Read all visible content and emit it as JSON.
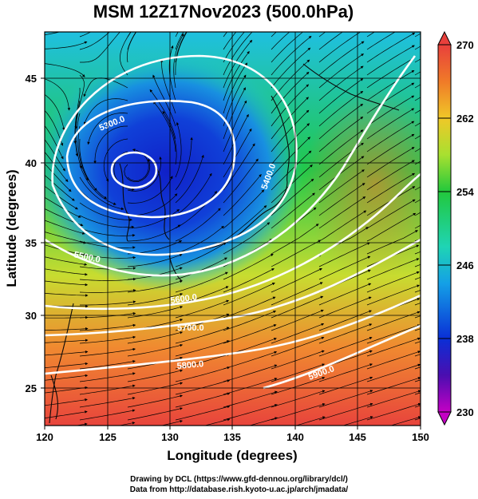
{
  "title": "MSM 12Z17Nov2023 (500.0hPa)",
  "axes": {
    "xlabel": "Longitude (degrees)",
    "ylabel": "Latitude  (degrees)",
    "x_ticks": [
      "120",
      "125",
      "130",
      "135",
      "140",
      "145",
      "150"
    ],
    "y_ticks": [
      "25",
      "30",
      "35",
      "40",
      "45"
    ],
    "x_range": [
      120,
      150
    ],
    "y_range": [
      22.4,
      47.6
    ]
  },
  "colorbar": {
    "ticks": [
      "270",
      "262",
      "254",
      "246",
      "238",
      "230"
    ],
    "range": [
      230,
      270
    ],
    "colors": {
      "c230": "#c400c4",
      "c234": "#4a0eb0",
      "c238": "#0a2fd6",
      "c244": "#14a0e6",
      "c248": "#1fd4b4",
      "c254": "#22c83c",
      "c258": "#a8e030",
      "c262": "#f0c828",
      "c266": "#f07a28",
      "c270": "#e8403c"
    }
  },
  "contours": [
    {
      "label": "5300.0",
      "level": 5300
    },
    {
      "label": "5400.0",
      "level": 5400
    },
    {
      "label": "5500.0",
      "level": 5500
    },
    {
      "label": "5600.0",
      "level": 5600
    },
    {
      "label": "5700.0",
      "level": 5700
    },
    {
      "label": "5800.0",
      "level": 5800
    },
    {
      "label": "5900.0",
      "level": 5900
    }
  ],
  "credits": {
    "line1": "Drawing by DCL (https://www.gfd-dennou.org/library/dcl/)",
    "line2": "Data from http://database.rish.kyoto-u.ac.jp/arch/jmadata/"
  }
}
